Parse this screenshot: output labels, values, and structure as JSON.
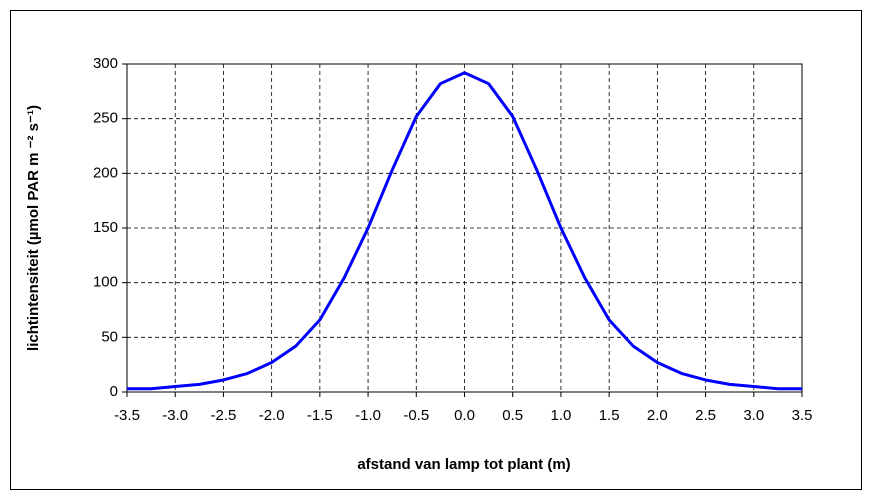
{
  "chart_data": {
    "type": "line",
    "x_label": "afstand van lamp tot plant (m)",
    "y_label": "lichtintensiteit (µmol PAR m ⁻² s⁻¹)",
    "x": [
      -3.5,
      -3.25,
      -3,
      -2.75,
      -2.5,
      -2.25,
      -2,
      -1.75,
      -1.5,
      -1.25,
      -1,
      -0.75,
      -0.5,
      -0.25,
      0,
      0.25,
      0.5,
      0.75,
      1,
      1.25,
      1.5,
      1.75,
      2,
      2.25,
      2.5,
      2.75,
      3,
      3.25,
      3.5
    ],
    "series": [
      {
        "color": "#0000ff",
        "values": [
          3,
          3,
          5,
          7,
          11,
          17,
          27,
          42,
          66,
          104,
          150,
          203,
          252,
          282,
          292,
          282,
          252,
          203,
          150,
          104,
          66,
          42,
          27,
          17,
          11,
          7,
          5,
          3,
          3
        ]
      }
    ],
    "xlim": [
      -3.5,
      3.5
    ],
    "xticks": [
      -3.5,
      {
        "value": -3,
        "label": "-3.0"
      },
      -2.5,
      {
        "value": -2,
        "label": "-2.0"
      },
      -1.5,
      {
        "value": -1,
        "label": "-1.0"
      },
      -0.5,
      {
        "value": 0,
        "label": "0.0"
      },
      0.5,
      {
        "value": 1,
        "label": "1.0"
      },
      1.5,
      {
        "value": 2,
        "label": "2.0"
      },
      2.5,
      {
        "value": 3,
        "label": "3.0"
      },
      3.5
    ],
    "ylim": [
      0,
      300
    ],
    "yticks": [
      0,
      50,
      100,
      150,
      200,
      250,
      300
    ],
    "grid": true
  }
}
